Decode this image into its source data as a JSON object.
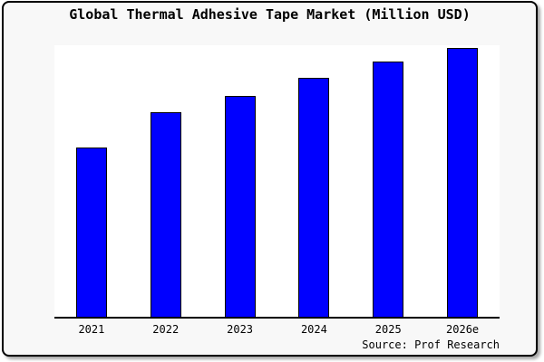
{
  "chart_data": {
    "type": "bar",
    "title": "Global Thermal Adhesive Tape Market (Million USD)",
    "categories": [
      "2021",
      "2022",
      "2023",
      "2024",
      "2025",
      "2026e"
    ],
    "values": [
      63,
      76,
      82,
      89,
      95,
      100
    ],
    "xlabel": "",
    "ylabel": "",
    "ylim": [
      0,
      101
    ],
    "grid": false,
    "legend": false,
    "y_axis_ticks_visible": false,
    "bar_color": "#0000ff",
    "bar_edge_color": "#000000"
  },
  "source": {
    "text": "Source: Prof Research"
  },
  "colors": {
    "card_background": "#f8f8f8",
    "plot_background": "#ffffff",
    "axis": "#000000",
    "border": "#000000",
    "text": "#000000"
  }
}
